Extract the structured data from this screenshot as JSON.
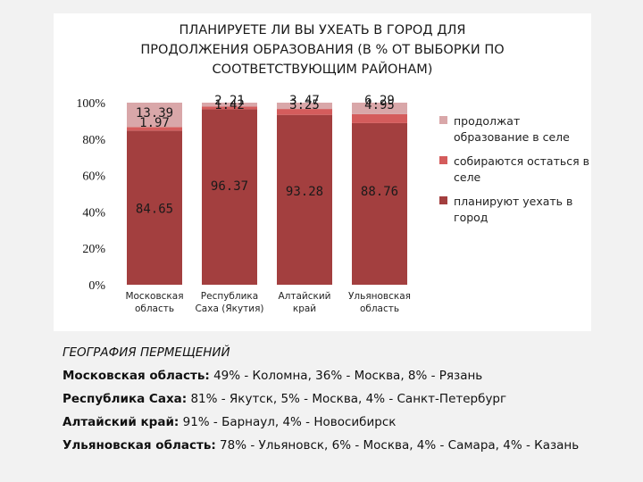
{
  "chart_data": {
    "type": "bar",
    "stacked": true,
    "title_lines": [
      "ПЛАНИРУЕТЕ ЛИ ВЫ УХЕАТЬ В ГОРОД ДЛЯ",
      "ПРОДОЛЖЕНИЯ ОБРАЗОВАНИЯ (В % ОТ ВЫБОРКИ ПО",
      "СООТВЕТСТВУЮЩИМ РАЙОНАМ)"
    ],
    "categories": [
      [
        "Московская",
        "область"
      ],
      [
        "Республика",
        "Саха (Якутия)"
      ],
      [
        "Алтайский",
        "край"
      ],
      [
        "Ульяновская",
        "область"
      ]
    ],
    "series": [
      {
        "name": "планируют уехать в город",
        "color": "#a33f3f",
        "values": [
          84.65,
          96.37,
          93.28,
          88.76
        ],
        "labels": [
          "84.65",
          "96.37",
          "93.28",
          "88.76"
        ]
      },
      {
        "name": "собираются остаться в селе",
        "color": "#d45c5c",
        "values": [
          1.97,
          1.42,
          3.25,
          4.95
        ],
        "labels": [
          "1.97",
          "1.42",
          "3.25",
          "4.95"
        ]
      },
      {
        "name": "продолжат образование в селе",
        "color": "#d9a7a9",
        "values": [
          13.39,
          2.21,
          3.47,
          6.29
        ],
        "labels": [
          "13.39",
          "2.21",
          "3.47",
          "6.29"
        ]
      }
    ],
    "y_ticks": [
      "0%",
      "20%",
      "40%",
      "60%",
      "80%",
      "100%"
    ],
    "ylim": [
      0,
      100
    ],
    "grid": false,
    "legend_position": "right"
  },
  "caption": {
    "heading": "ГЕОГРАФИЯ ПЕРМЕЩЕНИЙ",
    "rows": [
      {
        "region": "Московская область:",
        "text": " 49% - Коломна, 36% - Москва, 8% - Рязань"
      },
      {
        "region": "Республика Саха:",
        "text": " 81% - Якутск, 5% - Москва, 4% - Санкт-Петербург"
      },
      {
        "region": "Алтайский край:",
        "text": " 91% - Барнаул, 4% - Новосибирск"
      },
      {
        "region": "Ульяновская область:",
        "text": " 78% - Ульяновск, 6% - Москва, 4% - Самара, 4% - Казань"
      }
    ]
  }
}
